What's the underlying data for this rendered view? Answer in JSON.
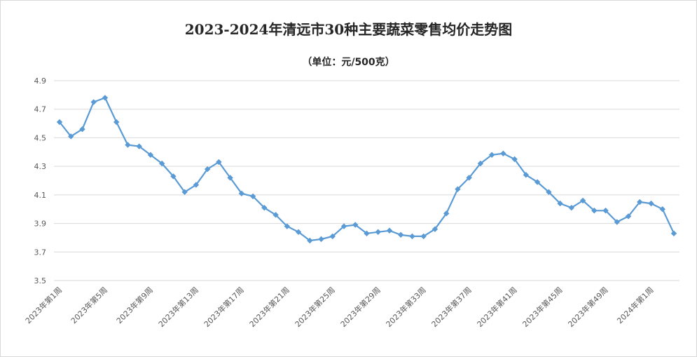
{
  "chart_data": {
    "type": "line",
    "title": "2023-2024年清远市30种主要蔬菜零售均价走势图",
    "subtitle": "（单位：元/500克）",
    "xlabel": "",
    "ylabel": "",
    "ylim": [
      3.5,
      4.9
    ],
    "yticks": [
      "4.9",
      "4.7",
      "4.5",
      "4.3",
      "4.1",
      "3.9",
      "3.7",
      "3.5"
    ],
    "grid": true,
    "legend": "none",
    "xtick_labels": [
      "2023年第1周",
      "2023年第5周",
      "2023年第9周",
      "2023年第13周",
      "2023年第17周",
      "2023年第21周",
      "2023年第25周",
      "2023年第29周",
      "2023年第33周",
      "2023年第37周",
      "2023年第41周",
      "2023年第45周",
      "2023年第49周",
      "2024年第1周"
    ],
    "label_every": 4,
    "series": [
      {
        "color": "#5b9bd5",
        "values": [
          4.61,
          4.51,
          4.56,
          4.75,
          4.78,
          4.61,
          4.45,
          4.44,
          4.38,
          4.32,
          4.23,
          4.12,
          4.17,
          4.28,
          4.33,
          4.22,
          4.11,
          4.09,
          4.01,
          3.96,
          3.88,
          3.84,
          3.78,
          3.79,
          3.81,
          3.88,
          3.89,
          3.83,
          3.84,
          3.85,
          3.82,
          3.81,
          3.81,
          3.86,
          3.97,
          4.14,
          4.22,
          4.32,
          4.38,
          4.39,
          4.35,
          4.24,
          4.19,
          4.12,
          4.04,
          4.01,
          4.06,
          3.99,
          3.99,
          3.91,
          3.95,
          4.05,
          4.04,
          4.0,
          3.83
        ]
      }
    ]
  }
}
